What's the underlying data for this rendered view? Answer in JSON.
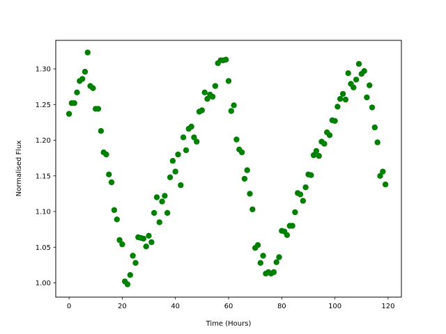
{
  "chart_data": {
    "type": "scatter",
    "title": "",
    "xlabel": "Time (Hours)",
    "ylabel": "Normalised Flux",
    "xlim": [
      -5,
      125
    ],
    "ylim": [
      0.98,
      1.34
    ],
    "grid": false,
    "marker_color": "#008000",
    "x_ticks": [
      {
        "value": 0,
        "label": "0"
      },
      {
        "value": 20,
        "label": "20"
      },
      {
        "value": 40,
        "label": "40"
      },
      {
        "value": 60,
        "label": "60"
      },
      {
        "value": 80,
        "label": "80"
      },
      {
        "value": 100,
        "label": "100"
      },
      {
        "value": 120,
        "label": "120"
      }
    ],
    "y_ticks": [
      {
        "value": 1.0,
        "label": "1.00"
      },
      {
        "value": 1.05,
        "label": "1.05"
      },
      {
        "value": 1.1,
        "label": "1.10"
      },
      {
        "value": 1.15,
        "label": "1.15"
      },
      {
        "value": 1.2,
        "label": "1.20"
      },
      {
        "value": 1.25,
        "label": "1.25"
      },
      {
        "value": 1.3,
        "label": "1.30"
      }
    ],
    "x": [
      0,
      1,
      2,
      3,
      4,
      5,
      6,
      7,
      8,
      9,
      10,
      11,
      12,
      13,
      14,
      15,
      16,
      17,
      18,
      19,
      20,
      21,
      22,
      23,
      24,
      25,
      26,
      27,
      28,
      29,
      30,
      31,
      32,
      33,
      34,
      35,
      36,
      37,
      38,
      39,
      40,
      41,
      42,
      43,
      44,
      45,
      46,
      47,
      48,
      49,
      50,
      51,
      52,
      53,
      54,
      55,
      56,
      57,
      58,
      59,
      60,
      61,
      62,
      63,
      64,
      65,
      66,
      67,
      68,
      69,
      70,
      71,
      72,
      73,
      74,
      75,
      76,
      77,
      78,
      79,
      80,
      81,
      82,
      83,
      84,
      85,
      86,
      87,
      88,
      89,
      90,
      91,
      92,
      93,
      94,
      95,
      96,
      97,
      98,
      99,
      100,
      101,
      102,
      103,
      104,
      105,
      106,
      107,
      108,
      109,
      110,
      111,
      112,
      113,
      114,
      115,
      116,
      117,
      118,
      119
    ],
    "y": [
      1.237,
      1.252,
      1.252,
      1.267,
      1.283,
      1.286,
      1.296,
      1.323,
      1.276,
      1.273,
      1.244,
      1.244,
      1.213,
      1.183,
      1.18,
      1.152,
      1.141,
      1.102,
      1.089,
      1.06,
      1.054,
      1.002,
      0.998,
      1.011,
      1.038,
      1.028,
      1.064,
      1.063,
      1.062,
      1.051,
      1.066,
      1.057,
      1.098,
      1.12,
      1.085,
      1.114,
      1.122,
      1.098,
      1.148,
      1.171,
      1.156,
      1.18,
      1.137,
      1.204,
      1.186,
      1.216,
      1.219,
      1.204,
      1.198,
      1.24,
      1.242,
      1.267,
      1.258,
      1.264,
      1.261,
      1.276,
      1.308,
      1.312,
      1.312,
      1.313,
      1.283,
      1.241,
      1.249,
      1.201,
      1.187,
      1.183,
      1.146,
      1.158,
      1.125,
      1.103,
      1.049,
      1.053,
      1.028,
      1.038,
      1.013,
      1.015,
      1.013,
      1.015,
      1.029,
      1.036,
      1.073,
      1.072,
      1.067,
      1.08,
      1.08,
      1.099,
      1.126,
      1.124,
      1.115,
      1.134,
      1.152,
      1.151,
      1.179,
      1.185,
      1.178,
      1.198,
      1.195,
      1.211,
      1.207,
      1.228,
      1.227,
      1.247,
      1.258,
      1.265,
      1.257,
      1.294,
      1.279,
      1.274,
      1.285,
      1.307,
      1.293,
      1.297,
      1.26,
      1.277,
      1.246,
      1.218,
      1.197,
      1.15,
      1.156,
      1.138
    ]
  }
}
